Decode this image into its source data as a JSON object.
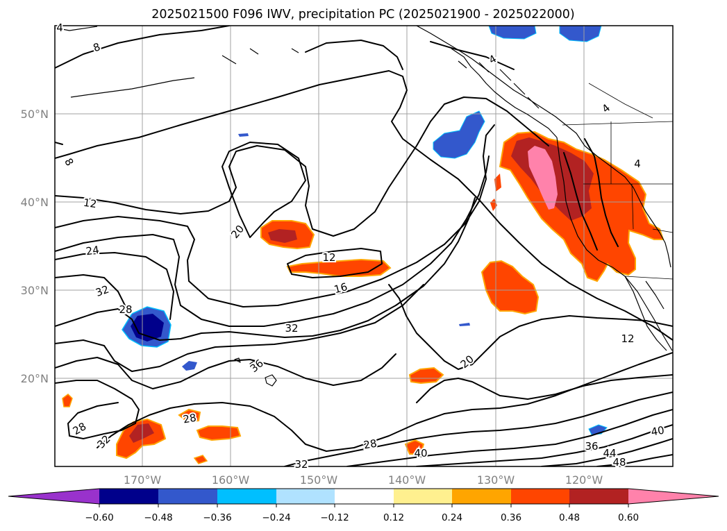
{
  "title": "2025021500 F096 IWV, precipitation PC (2025021900 - 2025022000)",
  "map": {
    "lat_labels": [
      "50°N",
      "40°N",
      "30°N",
      "20°N"
    ],
    "lon_labels": [
      "170°W",
      "160°W",
      "150°W",
      "140°W",
      "130°W",
      "120°W"
    ],
    "contour_labels": [
      "8",
      "4",
      "8",
      "12",
      "24",
      "32",
      "28",
      "20",
      "12",
      "16",
      "32",
      "36",
      "28",
      "32",
      "28",
      "32",
      "20",
      "40",
      "28",
      "12",
      "36",
      "40",
      "44",
      "48",
      "4",
      "4",
      "4"
    ]
  },
  "colorbar": {
    "ticks": [
      "−0.60",
      "−0.48",
      "−0.36",
      "−0.24",
      "−0.12",
      "0.12",
      "0.24",
      "0.36",
      "0.48",
      "0.60"
    ],
    "colors": {
      "under": "#9932cc",
      "c1": "#00008b",
      "c2": "#3358cc",
      "c3": "#00bfff",
      "c4": "#b0e2ff",
      "neutral": "#ffffff",
      "p1": "#fff08f",
      "p2": "#ffa500",
      "p3": "#ff4500",
      "p4": "#b22222",
      "over": "#ff82ab"
    }
  }
}
